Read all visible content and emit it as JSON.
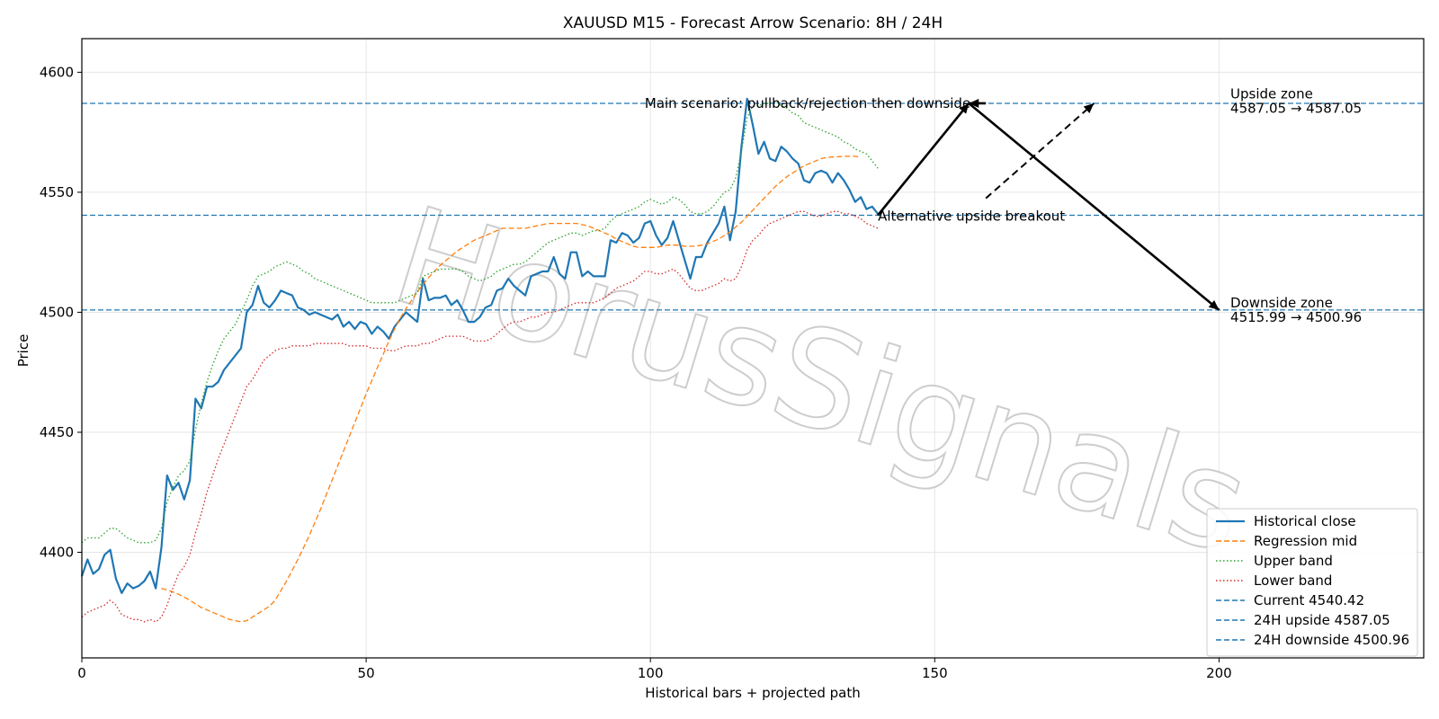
{
  "chart_data": {
    "type": "line",
    "title": "XAUUSD M15 - Forecast Arrow Scenario: 8H / 24H",
    "xlabel": "Historical bars + projected path",
    "ylabel": "Price",
    "xlim": [
      0,
      236
    ],
    "ylim": [
      4356,
      4614
    ],
    "x_ticks": [
      0,
      50,
      100,
      150,
      200
    ],
    "y_ticks": [
      4400,
      4450,
      4500,
      4550,
      4600
    ],
    "grid": true,
    "legend_position": "lower-right",
    "watermark": "HorusSignals",
    "series": [
      {
        "name": "Historical close",
        "style": "solid",
        "color": "#1f77b4",
        "values": [
          4390,
          4397,
          4391,
          4393,
          4399,
          4401,
          4389,
          4383,
          4387,
          4385,
          4386,
          4388,
          4392,
          4385,
          4402,
          4432,
          4426,
          4429,
          4422,
          4430,
          4464,
          4460,
          4469,
          4469,
          4471,
          4476,
          4479,
          4482,
          4485,
          4500,
          4503,
          4511,
          4504,
          4502,
          4505,
          4509,
          4508,
          4507,
          4502,
          4501,
          4499,
          4500,
          4499,
          4498,
          4497,
          4499,
          4494,
          4496,
          4493,
          4496,
          4495,
          4491,
          4494,
          4492,
          4489,
          4494,
          4497,
          4500,
          4498,
          4496,
          4514,
          4505,
          4506,
          4506,
          4507,
          4503,
          4505,
          4501,
          4496,
          4496,
          4498,
          4502,
          4503,
          4509,
          4510,
          4514,
          4511,
          4509,
          4507,
          4515,
          4516,
          4517,
          4517,
          4523,
          4516,
          4514,
          4525,
          4525,
          4515,
          4517,
          4515,
          4515,
          4515,
          4530,
          4529,
          4533,
          4532,
          4529,
          4531,
          4537,
          4538,
          4532,
          4528,
          4531,
          4538,
          4530,
          4522,
          4514,
          4523,
          4523,
          4529,
          4533,
          4537,
          4544,
          4530,
          4542,
          4569,
          4589,
          4578,
          4566,
          4571,
          4564,
          4563,
          4569,
          4567,
          4564,
          4562,
          4555,
          4554,
          4558,
          4559,
          4558,
          4554,
          4558,
          4555,
          4551,
          4546,
          4548,
          4543,
          4544,
          4541
        ]
      },
      {
        "name": "Regression mid",
        "style": "dashed",
        "color": "#ff7f0e",
        "values": [
          4385,
          4384.3,
          4383.5,
          4382.5,
          4381.3,
          4380,
          4378.5,
          4377,
          4376,
          4375,
          4374,
          4373,
          4372,
          4371.5,
          4371,
          4371.5,
          4373,
          4374.5,
          4376,
          4377.5,
          4380,
          4384,
          4388,
          4392.5,
          4397,
          4402,
          4407,
          4412.5,
          4418,
          4424,
          4430,
          4436,
          4442,
          4448,
          4454,
          4460,
          4466,
          4471.5,
          4477,
          4482.5,
          4488,
          4493,
          4497.5,
          4501.5,
          4505,
          4508.5,
          4511.5,
          4514.5,
          4517,
          4519.5,
          4521.5,
          4523.5,
          4525.5,
          4527,
          4528.5,
          4530,
          4531,
          4532,
          4533,
          4534,
          4535,
          4535,
          4535,
          4535,
          4535,
          4535.5,
          4536,
          4536.5,
          4537,
          4537,
          4537,
          4537,
          4537,
          4537,
          4536.5,
          4536,
          4535,
          4534,
          4533,
          4532,
          4530.5,
          4529.5,
          4528.5,
          4527.5,
          4527,
          4527,
          4527,
          4527,
          4527.5,
          4528,
          4528,
          4528,
          4527.5,
          4527.5,
          4527.5,
          4528,
          4528.5,
          4529.5,
          4530.5,
          4532,
          4533.5,
          4535.5,
          4537.5,
          4540,
          4542.5,
          4545,
          4547.5,
          4550,
          4552.5,
          4554.5,
          4556.5,
          4558,
          4559.5,
          4561,
          4562,
          4563,
          4564,
          4564.5,
          4564.7,
          4564.8,
          4565,
          4565,
          4565,
          4564.5
        ],
        "x_offset": 14
      },
      {
        "name": "Upper band",
        "style": "dotted",
        "color": "#2ca02c",
        "values": [
          4404,
          4406,
          4406,
          4406,
          4408,
          4410,
          4410,
          4408,
          4406,
          4405,
          4404,
          4404,
          4404,
          4405,
          4410,
          4421,
          4427,
          4432,
          4434,
          4438,
          4451,
          4462,
          4471,
          4478,
          4484,
          4489,
          4492,
          4495,
          4500,
          4505,
          4511,
          4515,
          4516,
          4517,
          4519,
          4520,
          4521,
          4520,
          4519,
          4517,
          4516,
          4514,
          4513,
          4512,
          4511,
          4510,
          4509,
          4508,
          4507,
          4506,
          4505,
          4504,
          4504,
          4504,
          4504,
          4504,
          4505,
          4506,
          4507,
          4508,
          4515,
          4516,
          4517,
          4518,
          4518,
          4518,
          4518,
          4517,
          4515,
          4514,
          4513,
          4514,
          4515,
          4517,
          4518,
          4519,
          4520,
          4520,
          4521,
          4523,
          4525,
          4527,
          4529,
          4530,
          4531,
          4532,
          4533,
          4533,
          4532,
          4533,
          4534,
          4534,
          4535,
          4538,
          4540,
          4541,
          4542,
          4543,
          4544,
          4546,
          4547,
          4546,
          4545,
          4546,
          4548,
          4547,
          4545,
          4542,
          4541,
          4541,
          4542,
          4544,
          4547,
          4550,
          4551,
          4556,
          4567,
          4581,
          4586,
          4586,
          4587,
          4587,
          4588,
          4586,
          4585,
          4583,
          4582,
          4579,
          4578,
          4577,
          4576,
          4575,
          4574,
          4573,
          4571,
          4570,
          4568,
          4567,
          4566,
          4563,
          4560
        ]
      },
      {
        "name": "Lower band",
        "style": "dotted",
        "color": "#d62728",
        "values": [
          4373,
          4375,
          4376,
          4377,
          4378,
          4380,
          4378,
          4374,
          4373,
          4372,
          4372,
          4371,
          4372,
          4371,
          4373,
          4378,
          4385,
          4391,
          4394,
          4399,
          4408,
          4416,
          4425,
          4432,
          4439,
          4445,
          4451,
          4457,
          4463,
          4469,
          4472,
          4476,
          4480,
          4482,
          4484,
          4485,
          4485,
          4486,
          4486,
          4486,
          4486,
          4487,
          4487,
          4487,
          4487,
          4487,
          4487,
          4486,
          4486,
          4486,
          4486,
          4485,
          4485,
          4485,
          4484,
          4484,
          4485,
          4486,
          4486,
          4486,
          4487,
          4487,
          4488,
          4489,
          4490,
          4490,
          4490,
          4490,
          4489,
          4488,
          4488,
          4488,
          4489,
          4491,
          4493,
          4495,
          4496,
          4496,
          4497,
          4498,
          4498,
          4499,
          4500,
          4500,
          4501,
          4502,
          4503,
          4504,
          4504,
          4504,
          4504,
          4505,
          4506,
          4508,
          4510,
          4511,
          4512,
          4513,
          4515,
          4517,
          4517,
          4516,
          4516,
          4517,
          4518,
          4516,
          4513,
          4510,
          4509,
          4509,
          4510,
          4511,
          4512,
          4514,
          4513,
          4514,
          4519,
          4526,
          4530,
          4532,
          4535,
          4537,
          4538,
          4539,
          4540,
          4541,
          4542,
          4542,
          4541,
          4540,
          4540,
          4541,
          4542,
          4542,
          4541,
          4541,
          4540,
          4539,
          4537,
          4536,
          4535
        ]
      },
      {
        "name": "Current 4540.42",
        "style": "hline",
        "color": "#1f77b4",
        "y": 4540.42
      },
      {
        "name": "24H upside 4587.05",
        "style": "hline",
        "color": "#1f77b4",
        "y": 4587.05
      },
      {
        "name": "24H downside 4500.96",
        "style": "hline",
        "color": "#1f77b4",
        "y": 4500.96
      }
    ],
    "arrows": [
      {
        "from": [
          140,
          4540.42
        ],
        "to": [
          156,
          4587.05
        ],
        "style": "solid"
      },
      {
        "from": [
          156,
          4587.05
        ],
        "to": [
          200,
          4500.96
        ],
        "style": "solid"
      },
      {
        "from": [
          159,
          4587.05
        ],
        "to": [
          156,
          4587.05
        ],
        "style": "solid"
      },
      {
        "from": [
          159,
          4547.5
        ],
        "to": [
          178,
          4587.05
        ],
        "style": "dashed"
      }
    ],
    "annotations": [
      {
        "text": "Main scenario: pullback/rejection then downside",
        "x": 99,
        "y": 4587
      },
      {
        "text": "Alternative upside breakout",
        "x": 140,
        "y": 4540
      },
      {
        "text": "Upside zone",
        "x": 202,
        "y": 4591
      },
      {
        "text": "4587.05 → 4587.05",
        "x": 202,
        "y": 4585
      },
      {
        "text": "Downside zone",
        "x": 202,
        "y": 4504
      },
      {
        "text": "4515.99 → 4500.96",
        "x": 202,
        "y": 4498
      }
    ]
  }
}
